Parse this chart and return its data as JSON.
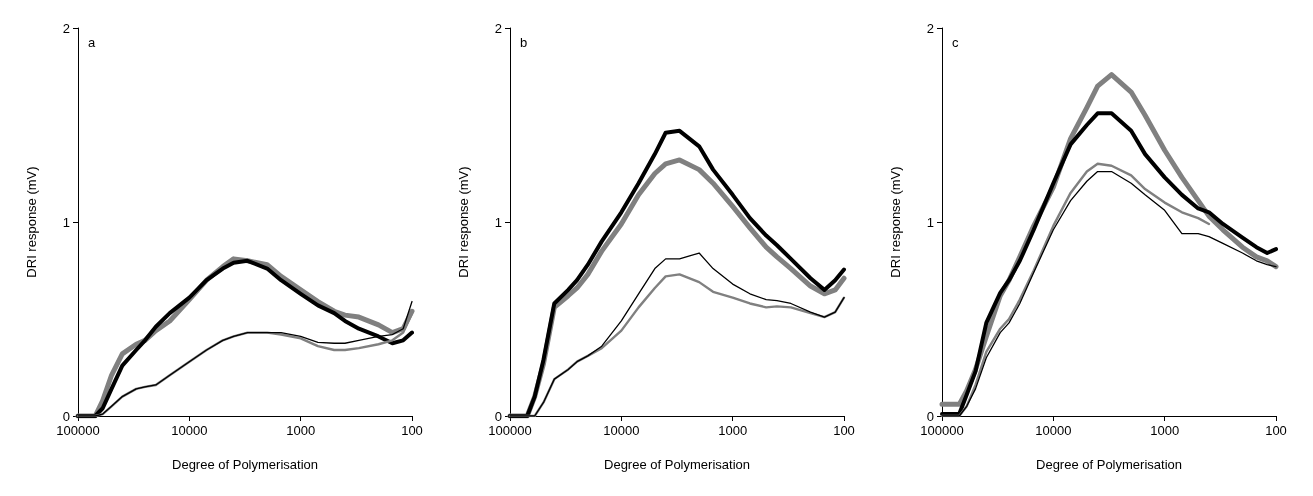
{
  "chart_data": [
    {
      "type": "line",
      "xlabel": "Degree of Polymerisation",
      "ylabel": "DRI response (mV)",
      "annotations": [
        "a"
      ],
      "log": "x",
      "grid": false,
      "marker": "none",
      "xlim": [
        100000,
        100
      ],
      "xticks": [
        100000,
        10000,
        1000,
        100
      ],
      "ylim": [
        0,
        2
      ],
      "yticks": [
        0,
        1,
        2
      ],
      "x": [
        100000,
        70000,
        60000,
        50000,
        40000,
        30000,
        25000,
        20000,
        15000,
        10000,
        7000,
        5000,
        4000,
        3000,
        2000,
        1500,
        1000,
        700,
        500,
        400,
        300,
        200,
        150,
        120,
        100
      ],
      "series": [
        {
          "color": "#000000",
          "values": [
            0,
            0,
            0.04,
            0.14,
            0.26,
            0.34,
            0.39,
            0.46,
            0.53,
            0.61,
            0.7,
            0.76,
            0.79,
            0.8,
            0.76,
            0.7,
            0.63,
            0.57,
            0.53,
            0.49,
            0.45,
            0.41,
            0.375,
            0.39,
            0.43
          ]
        },
        {
          "color": "#808080",
          "values": [
            0,
            0,
            0.08,
            0.21,
            0.32,
            0.37,
            0.39,
            0.44,
            0.49,
            0.6,
            0.7,
            0.77,
            0.81,
            0.8,
            0.78,
            0.72,
            0.65,
            0.59,
            0.54,
            0.52,
            0.51,
            0.47,
            0.43,
            0.45,
            0.54
          ]
        },
        {
          "color": "#000000",
          "values": [
            0,
            0,
            0.01,
            0.05,
            0.1,
            0.14,
            0.15,
            0.16,
            0.21,
            0.28,
            0.34,
            0.39,
            0.41,
            0.43,
            0.43,
            0.43,
            0.41,
            0.38,
            0.375,
            0.375,
            0.39,
            0.41,
            0.42,
            0.45,
            0.59
          ]
        },
        {
          "color": "#808080",
          "values": [
            0,
            0,
            0.01,
            0.05,
            0.1,
            0.14,
            0.15,
            0.16,
            0.21,
            0.28,
            0.34,
            0.39,
            0.41,
            0.43,
            0.43,
            0.42,
            0.4,
            0.36,
            0.34,
            0.34,
            0.35,
            0.37,
            0.39,
            0.43,
            0.53
          ]
        }
      ]
    },
    {
      "type": "line",
      "xlabel": "Degree of Polymerisation",
      "ylabel": "DRI response (mV)",
      "annotations": [
        "b"
      ],
      "log": "x",
      "grid": false,
      "marker": "none",
      "xlim": [
        100000,
        100
      ],
      "xticks": [
        100000,
        10000,
        1000,
        100
      ],
      "ylim": [
        0,
        2
      ],
      "yticks": [
        0,
        1,
        2
      ],
      "x": [
        100000,
        70000,
        60000,
        50000,
        40000,
        30000,
        25000,
        20000,
        15000,
        10000,
        7000,
        5000,
        4000,
        3000,
        2000,
        1500,
        1000,
        700,
        500,
        400,
        300,
        200,
        150,
        120,
        100
      ],
      "series": [
        {
          "color": "#000000",
          "values": [
            0,
            0,
            0.1,
            0.29,
            0.58,
            0.65,
            0.7,
            0.78,
            0.9,
            1.05,
            1.2,
            1.35,
            1.46,
            1.47,
            1.39,
            1.27,
            1.14,
            1.02,
            0.93,
            0.88,
            0.81,
            0.71,
            0.65,
            0.7,
            0.755
          ]
        },
        {
          "color": "#808080",
          "values": [
            0,
            0,
            0.1,
            0.27,
            0.56,
            0.62,
            0.66,
            0.73,
            0.85,
            0.99,
            1.14,
            1.25,
            1.3,
            1.32,
            1.27,
            1.2,
            1.08,
            0.97,
            0.87,
            0.82,
            0.76,
            0.67,
            0.63,
            0.65,
            0.71
          ]
        },
        {
          "color": "#000000",
          "values": [
            0,
            0,
            0,
            0.07,
            0.19,
            0.24,
            0.28,
            0.31,
            0.36,
            0.49,
            0.63,
            0.76,
            0.81,
            0.81,
            0.84,
            0.76,
            0.68,
            0.63,
            0.6,
            0.595,
            0.58,
            0.535,
            0.51,
            0.535,
            0.61
          ]
        },
        {
          "color": "#808080",
          "values": [
            0,
            0,
            0,
            0.07,
            0.19,
            0.24,
            0.28,
            0.31,
            0.35,
            0.44,
            0.56,
            0.66,
            0.72,
            0.73,
            0.69,
            0.64,
            0.61,
            0.58,
            0.56,
            0.565,
            0.56,
            0.53,
            0.51,
            0.535,
            0.61
          ]
        }
      ]
    },
    {
      "type": "line",
      "xlabel": "Degree of Polymerisation",
      "ylabel": "DRI response (mV)",
      "annotations": [
        "c"
      ],
      "log": "x",
      "grid": false,
      "marker": "none",
      "xlim": [
        100000,
        100
      ],
      "xticks": [
        100000,
        10000,
        1000,
        100
      ],
      "ylim": [
        0,
        2
      ],
      "yticks": [
        0,
        1,
        2
      ],
      "x": [
        100000,
        70000,
        60000,
        50000,
        40000,
        30000,
        25000,
        20000,
        15000,
        10000,
        7000,
        5000,
        4000,
        3000,
        2000,
        1500,
        1000,
        700,
        500,
        400,
        300,
        200,
        150,
        120,
        100
      ],
      "series": [
        {
          "color": "#000000",
          "values": [
            0.01,
            0.01,
            0.11,
            0.23,
            0.48,
            0.635,
            0.7,
            0.8,
            0.96,
            1.2,
            1.4,
            1.5,
            1.56,
            1.56,
            1.47,
            1.35,
            1.23,
            1.14,
            1.07,
            1.05,
            0.99,
            0.92,
            0.87,
            0.84,
            0.86
          ]
        },
        {
          "color": "#808080",
          "values": [
            0.06,
            0.06,
            0.13,
            0.24,
            0.41,
            0.62,
            0.7,
            0.82,
            0.98,
            1.18,
            1.43,
            1.59,
            1.7,
            1.76,
            1.67,
            1.55,
            1.37,
            1.23,
            1.11,
            1.03,
            0.96,
            0.87,
            0.82,
            0.8,
            0.77
          ]
        },
        {
          "color": "#000000",
          "values": [
            0,
            0,
            0.05,
            0.14,
            0.3,
            0.43,
            0.48,
            0.58,
            0.74,
            0.96,
            1.11,
            1.21,
            1.26,
            1.26,
            1.2,
            1.14,
            1.06,
            0.94,
            0.94,
            0.925,
            0.89,
            0.84,
            0.8,
            0.78,
            0.77
          ]
        },
        {
          "color": "#808080",
          "values": [
            0,
            0,
            0.05,
            0.16,
            0.33,
            0.45,
            0.5,
            0.6,
            0.75,
            0.98,
            1.15,
            1.26,
            1.3,
            1.29,
            1.24,
            1.17,
            1.1,
            1.05,
            1.02,
            0.99,
            null,
            null,
            null,
            null,
            null
          ]
        }
      ]
    }
  ]
}
